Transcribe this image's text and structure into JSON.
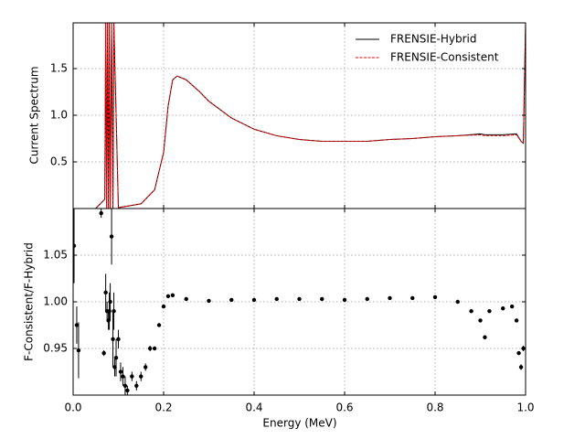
{
  "chart_data": [
    {
      "type": "line",
      "ylabel": "Current Spectrum",
      "ylim": [
        0,
        1.99
      ],
      "yticks": [
        0.5,
        {
          "value": 1.0,
          "label": "1.0"
        },
        1.5
      ],
      "grid": true,
      "legend": "upper right",
      "x": [
        0.0,
        0.05,
        0.06,
        0.07,
        0.072,
        0.074,
        0.076,
        0.078,
        0.08,
        0.082,
        0.085,
        0.088,
        0.09,
        0.1,
        0.15,
        0.18,
        0.2,
        0.21,
        0.22,
        0.23,
        0.25,
        0.28,
        0.3,
        0.35,
        0.4,
        0.45,
        0.5,
        0.55,
        0.6,
        0.65,
        0.7,
        0.75,
        0.8,
        0.85,
        0.9,
        0.91,
        0.95,
        0.98,
        0.99,
        0.995,
        1.0
      ],
      "series": [
        {
          "name": "FRENSIE-Hybrid",
          "color": "#000000",
          "dash": false,
          "values": [
            0.0,
            0.0,
            0.05,
            0.1,
            1.99,
            0.0,
            1.99,
            0.0,
            1.99,
            0.0,
            1.99,
            0.0,
            1.99,
            0.01,
            0.05,
            0.2,
            0.6,
            1.1,
            1.38,
            1.42,
            1.38,
            1.25,
            1.15,
            0.97,
            0.85,
            0.78,
            0.74,
            0.72,
            0.72,
            0.72,
            0.74,
            0.75,
            0.77,
            0.78,
            0.8,
            0.79,
            0.79,
            0.8,
            0.72,
            0.7,
            1.99
          ]
        },
        {
          "name": "FRENSIE-Consistent",
          "color": "#ff0000",
          "dash": true,
          "values": [
            0.0,
            0.0,
            0.05,
            0.1,
            1.99,
            0.0,
            1.99,
            0.0,
            1.99,
            0.0,
            1.99,
            0.0,
            1.99,
            0.01,
            0.05,
            0.2,
            0.6,
            1.1,
            1.38,
            1.42,
            1.38,
            1.25,
            1.15,
            0.97,
            0.85,
            0.78,
            0.74,
            0.72,
            0.72,
            0.72,
            0.74,
            0.75,
            0.77,
            0.78,
            0.79,
            0.78,
            0.78,
            0.79,
            0.72,
            0.7,
            1.99
          ]
        }
      ]
    },
    {
      "type": "scatter",
      "xlabel": "Energy (MeV)",
      "ylabel": "F-Consistent/F-Hybrid",
      "xlim": [
        0,
        1
      ],
      "xticks": [
        {
          "value": 0,
          "label": "0.0"
        },
        {
          "value": 0.2,
          "label": "0.2"
        },
        {
          "value": 0.4,
          "label": "0.4"
        },
        {
          "value": 0.6,
          "label": "0.6"
        },
        {
          "value": 0.8,
          "label": "0.8"
        },
        {
          "value": 1,
          "label": "1.0"
        }
      ],
      "ylim": [
        0.9,
        1.1
      ],
      "yticks": [
        {
          "value": 0.95,
          "label": "0.95"
        },
        {
          "value": 1.0,
          "label": "1.00"
        },
        {
          "value": 1.05,
          "label": "1.05"
        }
      ],
      "grid": true,
      "color": "#000000",
      "x": [
        0.002,
        0.008,
        0.012,
        0.062,
        0.068,
        0.072,
        0.075,
        0.078,
        0.08,
        0.082,
        0.085,
        0.088,
        0.09,
        0.092,
        0.095,
        0.1,
        0.105,
        0.11,
        0.115,
        0.12,
        0.13,
        0.14,
        0.15,
        0.16,
        0.17,
        0.18,
        0.19,
        0.2,
        0.21,
        0.22,
        0.25,
        0.3,
        0.35,
        0.4,
        0.45,
        0.5,
        0.55,
        0.6,
        0.65,
        0.7,
        0.75,
        0.8,
        0.85,
        0.88,
        0.9,
        0.91,
        0.92,
        0.95,
        0.97,
        0.98,
        0.985,
        0.99,
        0.995
      ],
      "values": [
        1.06,
        0.975,
        0.948,
        1.095,
        0.945,
        1.01,
        0.99,
        0.98,
        0.99,
        1.0,
        1.07,
        0.96,
        0.99,
        0.93,
        0.94,
        0.96,
        0.925,
        0.92,
        0.91,
        0.905,
        0.92,
        0.91,
        0.92,
        0.93,
        0.95,
        0.95,
        0.975,
        0.995,
        1.006,
        1.007,
        1.003,
        1.001,
        1.002,
        1.002,
        1.003,
        1.003,
        1.003,
        1.002,
        1.003,
        1.004,
        1.004,
        1.005,
        1.0,
        0.99,
        0.98,
        0.962,
        0.99,
        0.993,
        0.995,
        0.98,
        0.945,
        0.93,
        0.95
      ],
      "errors": [
        0.04,
        0.02,
        0.03,
        0.005,
        0.003,
        0.02,
        0.01,
        0.01,
        0.02,
        0.02,
        0.03,
        0.03,
        0.02,
        0.01,
        0.02,
        0.01,
        0.01,
        0.01,
        0.01,
        0.005,
        0.005,
        0.005,
        0.005,
        0.004,
        0.003,
        0.002,
        0.002,
        0.002,
        0.001,
        0.001,
        0.001,
        0.001,
        0.001,
        0.001,
        0.001,
        0.001,
        0.001,
        0.001,
        0.001,
        0.001,
        0.001,
        0.001,
        0.001,
        0.001,
        0.001,
        0.001,
        0.001,
        0.001,
        0.001,
        0.002,
        0.002,
        0.003,
        0.003
      ]
    }
  ]
}
